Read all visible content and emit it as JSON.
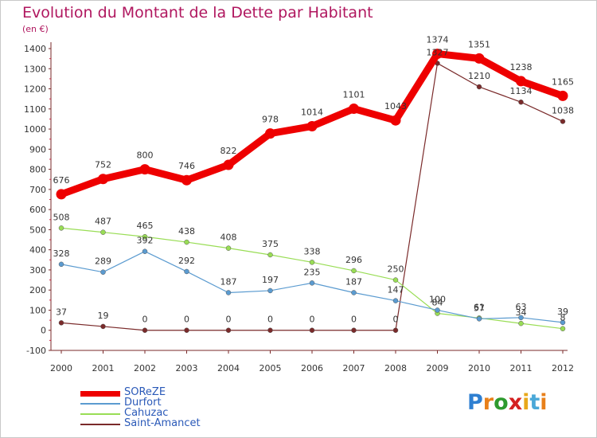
{
  "header": {
    "title": "Evolution du Montant de la Dette par Habitant",
    "subtitle": "(en €)"
  },
  "brand": {
    "letters": [
      "P",
      "r",
      "o",
      "x",
      "i",
      "t",
      "i"
    ],
    "colors": [
      "#2e7fd1",
      "#e8801a",
      "#2e9a2e",
      "#d42020",
      "#e8a81a",
      "#4aa8d8",
      "#e8801a"
    ]
  },
  "chart_data": {
    "type": "line",
    "title": "Evolution du Montant de la Dette par Habitant",
    "subtitle": "(en €)",
    "x": [
      "2000",
      "2001",
      "2002",
      "2003",
      "2004",
      "2005",
      "2006",
      "2007",
      "2008",
      "2009",
      "2010",
      "2011",
      "2012"
    ],
    "ylim": [
      -100,
      1400
    ],
    "yticks": [
      "-100",
      "0",
      "100",
      "200",
      "300",
      "400",
      "500",
      "600",
      "700",
      "800",
      "900",
      "1000",
      "1100",
      "1200",
      "1300",
      "1400"
    ],
    "grid": false,
    "legend_position": "bottom-left",
    "series": [
      {
        "name": "SOReZE",
        "color": "#ee0000",
        "values": [
          676,
          752,
          800,
          746,
          822,
          978,
          1014,
          1101,
          1043,
          1374,
          1351,
          1238,
          1165
        ],
        "labels": [
          "676",
          "752",
          "800",
          "746",
          "822",
          "978",
          "1014",
          "1101",
          "1043",
          "1374",
          "1351",
          "1238",
          "1165"
        ]
      },
      {
        "name": "Durfort",
        "color": "#5b9bd0",
        "values": [
          328,
          289,
          392,
          292,
          187,
          197,
          235,
          187,
          147,
          100,
          57,
          63,
          39
        ],
        "labels": [
          "328",
          "289",
          "392",
          "292",
          "187",
          "197",
          "235",
          "187",
          "147",
          "100",
          "57",
          "63",
          "39"
        ]
      },
      {
        "name": "Cahuzac",
        "color": "#99dd55",
        "values": [
          508,
          487,
          465,
          438,
          408,
          375,
          338,
          296,
          250,
          84,
          61,
          34,
          8
        ],
        "labels": [
          "508",
          "487",
          "465",
          "438",
          "408",
          "375",
          "338",
          "296",
          "250",
          "84",
          "61",
          "34",
          "8"
        ]
      },
      {
        "name": "Saint-Amancet",
        "color": "#7a2a2a",
        "values": [
          37,
          19,
          0,
          0,
          0,
          0,
          0,
          0,
          0,
          1327,
          1210,
          1134,
          1038
        ],
        "labels": [
          "37",
          "19",
          "0",
          "0",
          "0",
          "0",
          "0",
          "0",
          "0",
          "1327",
          "1210",
          "1134",
          "1038"
        ]
      }
    ]
  }
}
